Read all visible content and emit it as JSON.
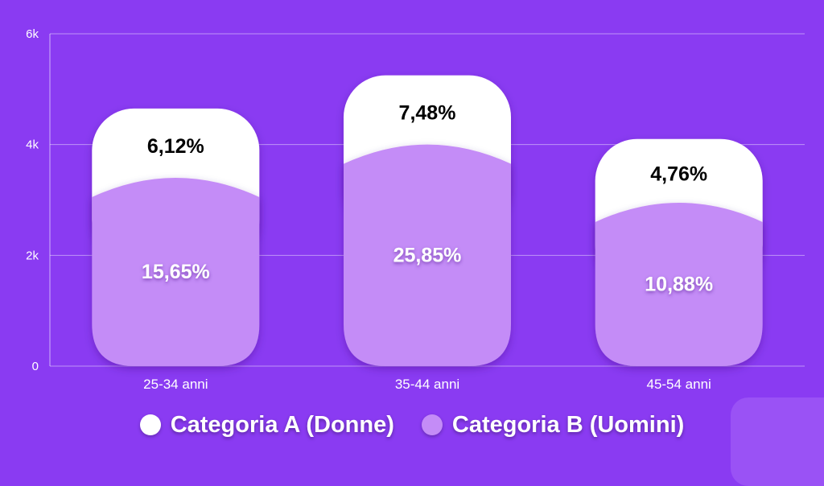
{
  "chart_data": {
    "type": "bar",
    "stacked": true,
    "categories": [
      "25-34 anni",
      "35-44 anni",
      "45-54 anni"
    ],
    "series": [
      {
        "name": "Categoria B (Uomini)",
        "color": "#c48cf7",
        "values": [
          3400,
          4000,
          2950
        ],
        "labels": [
          "15,65%",
          "25,85%",
          "10,88%"
        ],
        "label_color": "#ffffff"
      },
      {
        "name": "Categoria A (Donne)",
        "color": "#ffffff",
        "values": [
          1250,
          1250,
          1150
        ],
        "labels": [
          "6,12%",
          "7,48%",
          "4,76%"
        ],
        "label_color": "#000000"
      }
    ],
    "yticks": [
      "0",
      "2k",
      "4k",
      "6k"
    ],
    "ytick_values": [
      0,
      2000,
      4000,
      6000
    ],
    "ylim": [
      0,
      6000
    ],
    "grid": true,
    "legend": "bottom",
    "background": "#8a3bf2"
  }
}
